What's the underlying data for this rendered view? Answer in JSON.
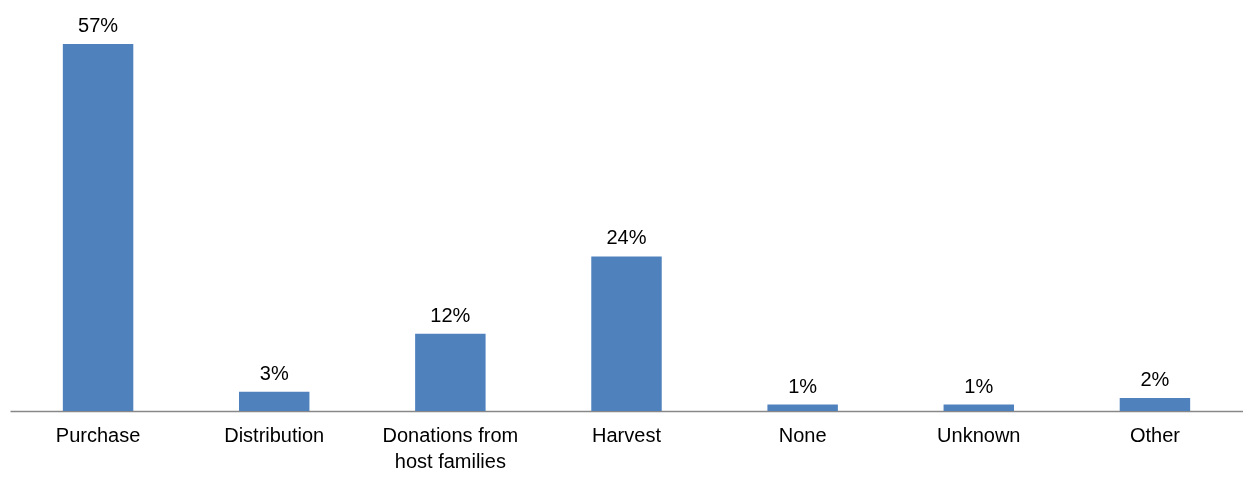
{
  "chart_data": {
    "type": "bar",
    "categories": [
      "Purchase",
      "Distribution",
      "Donations from host families",
      "Harvest",
      "None",
      "Unknown",
      "Other"
    ],
    "values": [
      57,
      3,
      12,
      24,
      1,
      1,
      2
    ],
    "value_labels": [
      "57%",
      "3%",
      "12%",
      "24%",
      "1%",
      "1%",
      "2%"
    ],
    "color": "#4f81bd"
  }
}
